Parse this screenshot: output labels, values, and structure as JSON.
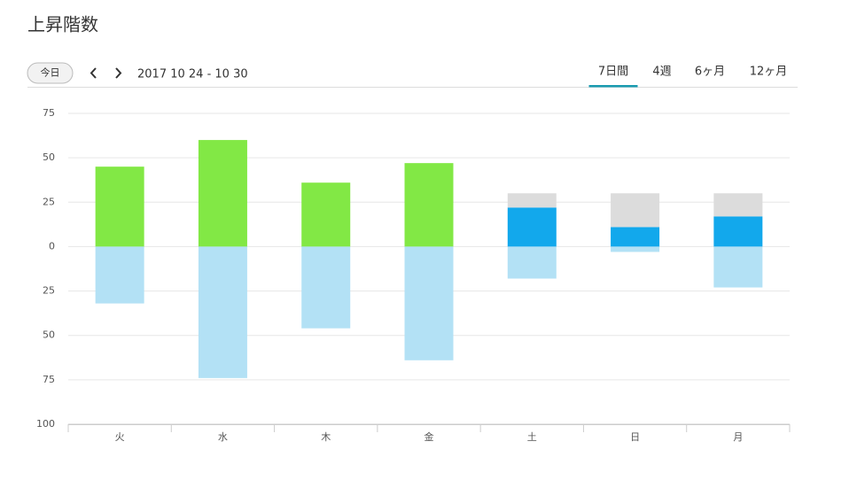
{
  "header": {
    "today_button": "今日",
    "date_range": "2017 10 24 - 10 30",
    "tabs": [
      "7日間",
      "4週",
      "6ヶ月",
      "12ヶ月"
    ],
    "active_tab": 0
  },
  "chart_data": {
    "type": "bar",
    "stacked": true,
    "title": "上昇階数",
    "categories": [
      "火",
      "水",
      "木",
      "金",
      "土",
      "日",
      "月"
    ],
    "series": [
      {
        "color": "#82e845",
        "values": [
          45,
          60,
          36,
          47,
          null,
          null,
          null
        ]
      },
      {
        "color": "#12a8ec",
        "values": [
          null,
          null,
          null,
          null,
          22,
          11,
          17
        ]
      },
      {
        "color": "#dcdcdc",
        "values": [
          null,
          null,
          null,
          null,
          8,
          19,
          13
        ]
      },
      {
        "color": "#b3e1f5",
        "values": [
          -32,
          -74,
          -46,
          -64,
          -18,
          -3,
          -23
        ]
      }
    ],
    "ylim": [
      -100,
      75
    ],
    "yticks": [
      75,
      50,
      25,
      0,
      {
        "value": -25,
        "label": "25"
      },
      {
        "value": -50,
        "label": "50"
      },
      {
        "value": -75,
        "label": "75"
      },
      {
        "value": -100,
        "label": "100"
      }
    ],
    "grid": true
  }
}
